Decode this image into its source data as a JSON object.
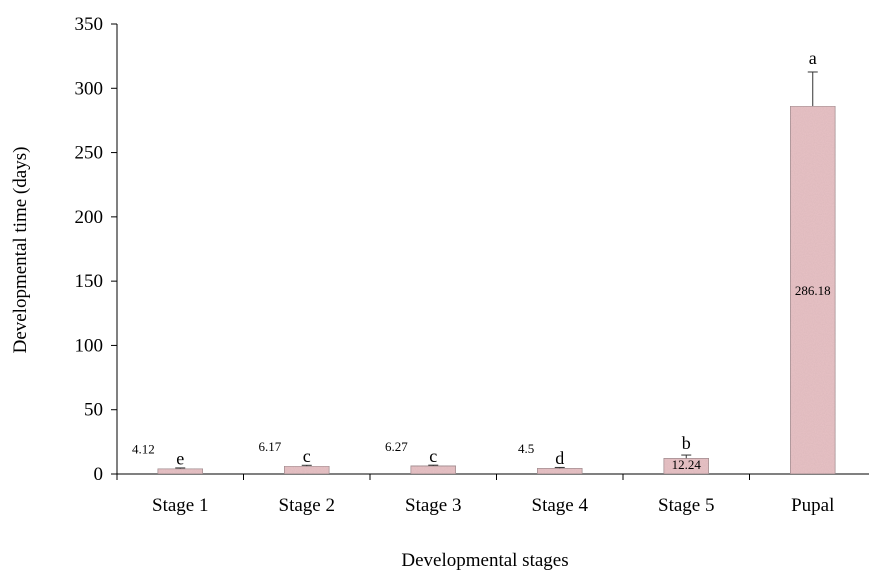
{
  "chart_data": {
    "type": "bar",
    "categories": [
      "Stage 1",
      "Stage 2",
      "Stage 3",
      "Stage 4",
      "Stage 5",
      "Pupal"
    ],
    "values": [
      4.12,
      6.17,
      6.27,
      4.5,
      12.24,
      286.18
    ],
    "value_labels": [
      "4.12",
      "6.17",
      "6.27",
      "4.5",
      "12.24",
      "286.18"
    ],
    "error": [
      0.6,
      0.6,
      0.6,
      0.6,
      2.5,
      26.5
    ],
    "significance": [
      "e",
      "c",
      "c",
      "d",
      "b",
      "a"
    ],
    "xlabel": "Developmental stages",
    "ylabel": "Developmental time (days)",
    "ylim": [
      0,
      350
    ],
    "yticks": [
      "0",
      "50",
      "100",
      "150",
      "200",
      "250",
      "300",
      "350"
    ],
    "grid": false,
    "colors": {
      "bar_fill": "#e8c3c6",
      "bar_stroke": "#9a8a8c",
      "axis": "#000000"
    }
  }
}
